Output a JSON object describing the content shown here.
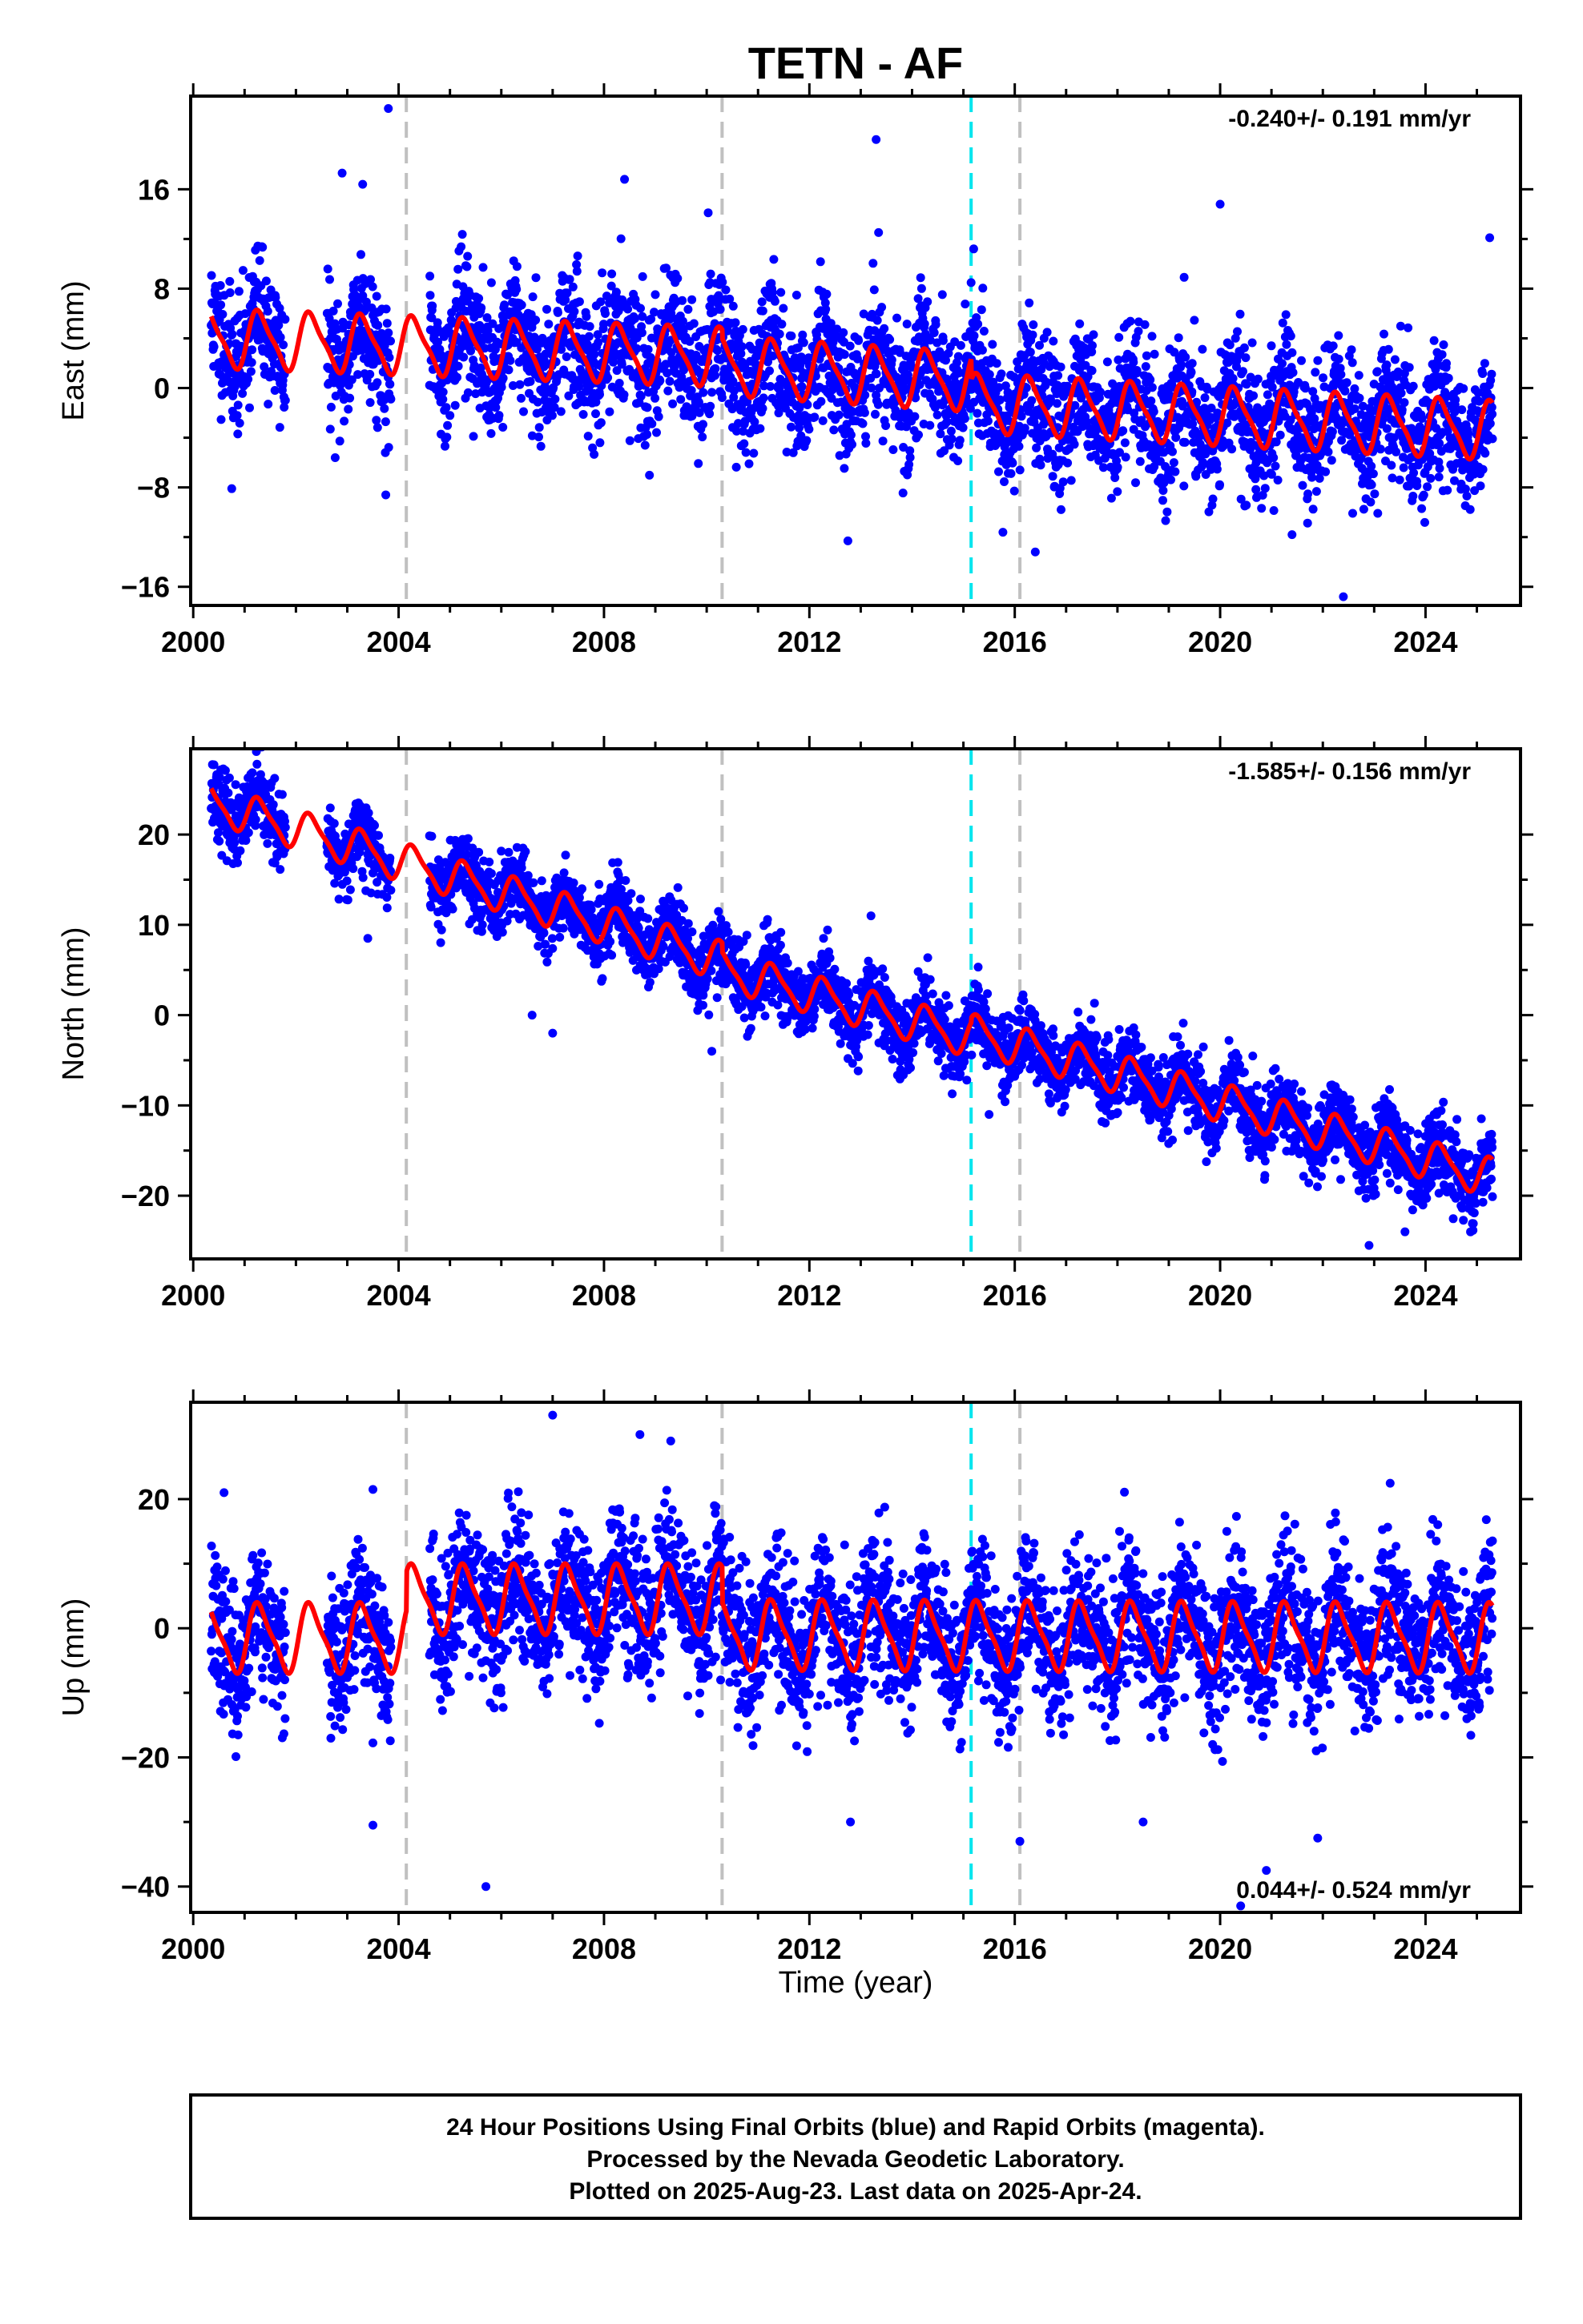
{
  "title": "TETN - AF",
  "xlabel": "Time (year)",
  "footer": {
    "line1": "24 Hour Positions Using Final Orbits (blue) and Rapid Orbits (magenta).",
    "line2": "Processed by the Nevada Geodetic Laboratory.",
    "line3": "Plotted on 2025-Aug-23. Last data on 2025-Apr-24."
  },
  "colors": {
    "final_orbits": "#0000ff",
    "model_fit": "#ff0000",
    "gray_offset": "#c0c0c0",
    "cyan_offset": "#00e5ee"
  },
  "chart_data": [
    {
      "type": "scatter",
      "id": "east",
      "ylabel": "East (mm)",
      "xlim": [
        1999.95,
        2025.85
      ],
      "ylim": [
        -17.5,
        23.5
      ],
      "x_ticks": [
        2000,
        2004,
        2008,
        2012,
        2016,
        2020,
        2024
      ],
      "y_ticks": [
        -16,
        -8,
        0,
        8,
        16
      ],
      "y_tick_labels": [
        "−16",
        "−8",
        "0",
        "8",
        "16"
      ],
      "rate_label": "-0.240+/- 0.191 mm/yr",
      "rate_position": "top-right",
      "gray_offsets": [
        2004.15,
        2010.3,
        2016.1
      ],
      "cyan_offsets": [
        2015.15
      ],
      "fit": {
        "segments": [
          {
            "start": 2000.35,
            "end": 2010.3,
            "base_start": 4.0,
            "base_end": 2.5
          },
          {
            "start": 2010.3,
            "end": 2015.15,
            "base_start": 1.8,
            "base_end": 0.5
          },
          {
            "start": 2015.15,
            "end": 2025.3,
            "base_start": -1.2,
            "base_end": -3.4
          }
        ],
        "annual_amplitude": 2.2,
        "phase": 0.05
      },
      "noise_sd": 2.6,
      "outliers": [
        [
          2003.8,
          22.5
        ],
        [
          2002.9,
          17.3
        ],
        [
          2003.3,
          16.4
        ],
        [
          2013.3,
          20.0
        ],
        [
          2008.4,
          16.8
        ],
        [
          2020.0,
          14.8
        ],
        [
          2022.4,
          -16.8
        ],
        [
          2003.75,
          -8.6
        ],
        [
          2000.75,
          -8.1
        ],
        [
          2012.75,
          -12.3
        ],
        [
          2016.4,
          -13.2
        ],
        [
          2025.25,
          12.1
        ],
        [
          2015.2,
          11.2
        ],
        [
          2021.4,
          -11.8
        ]
      ],
      "gaps": [
        [
          2001.8,
          2002.6
        ],
        [
          2003.85,
          2004.6
        ]
      ]
    },
    {
      "type": "scatter",
      "id": "north",
      "ylabel": "North (mm)",
      "xlim": [
        1999.95,
        2025.85
      ],
      "ylim": [
        -27,
        29.5
      ],
      "x_ticks": [
        2000,
        2004,
        2008,
        2012,
        2016,
        2020,
        2024
      ],
      "y_ticks": [
        -20,
        -10,
        0,
        10,
        20
      ],
      "y_tick_labels": [
        "−20",
        "−10",
        "0",
        "10",
        "20"
      ],
      "rate_label": "-1.585+/- 0.156 mm/yr",
      "rate_position": "top-right",
      "gray_offsets": [
        2004.15,
        2010.3,
        2016.1
      ],
      "cyan_offsets": [
        2015.15
      ],
      "fit": {
        "segments": [
          {
            "start": 2000.35,
            "end": 2010.3,
            "base_start": 23.5,
            "base_end": 6.0
          },
          {
            "start": 2010.3,
            "end": 2015.15,
            "base_start": 5.0,
            "base_end": -2.5
          },
          {
            "start": 2015.15,
            "end": 2025.3,
            "base_start": -2.0,
            "base_end": -18.0
          }
        ],
        "annual_amplitude": 2.0,
        "phase": 0.05
      },
      "noise_sd": 2.0,
      "outliers": [
        [
          2022.9,
          -25.5
        ],
        [
          2023.6,
          -24.0
        ],
        [
          2007.0,
          -2.0
        ],
        [
          2006.6,
          0.0
        ],
        [
          2015.5,
          -11.0
        ],
        [
          2013.2,
          11.0
        ],
        [
          2003.4,
          8.5
        ],
        [
          2010.1,
          -4.0
        ]
      ],
      "gaps": [
        [
          2001.8,
          2002.6
        ],
        [
          2003.85,
          2004.6
        ]
      ]
    },
    {
      "type": "scatter",
      "id": "up",
      "ylabel": "Up (mm)",
      "xlim": [
        1999.95,
        2025.85
      ],
      "ylim": [
        -44,
        35
      ],
      "x_ticks": [
        2000,
        2004,
        2008,
        2012,
        2016,
        2020,
        2024
      ],
      "y_ticks": [
        -40,
        -20,
        0,
        20
      ],
      "y_tick_labels": [
        "−40",
        "−20",
        "0",
        "20"
      ],
      "rate_label": "0.044+/- 0.524 mm/yr",
      "rate_position": "bottom-right",
      "gray_offsets": [
        2004.15,
        2010.3,
        2016.1
      ],
      "cyan_offsets": [
        2015.15
      ],
      "fit": {
        "segments": [
          {
            "start": 2000.35,
            "end": 2004.15,
            "base_start": -1.5,
            "base_end": -1.5
          },
          {
            "start": 2004.15,
            "end": 2010.3,
            "base_start": 4.5,
            "base_end": 4.5
          },
          {
            "start": 2010.3,
            "end": 2025.3,
            "base_start": -1.0,
            "base_end": -1.5
          }
        ],
        "annual_amplitude": 5.0,
        "phase": 0.05
      },
      "noise_sd": 5.5,
      "outliers": [
        [
          2007.0,
          33.0
        ],
        [
          2005.7,
          -40.0
        ],
        [
          2003.5,
          -30.5
        ],
        [
          2012.8,
          -30.0
        ],
        [
          2018.5,
          -30.0
        ],
        [
          2020.9,
          -37.5
        ],
        [
          2021.9,
          -32.5
        ],
        [
          2016.1,
          -33.0
        ],
        [
          2020.4,
          -43.0
        ],
        [
          2000.6,
          21.0
        ],
        [
          2003.5,
          21.5
        ],
        [
          2008.7,
          30.0
        ],
        [
          2009.3,
          29.0
        ]
      ],
      "gaps": [
        [
          2001.8,
          2002.6
        ],
        [
          2003.85,
          2004.6
        ]
      ]
    }
  ]
}
